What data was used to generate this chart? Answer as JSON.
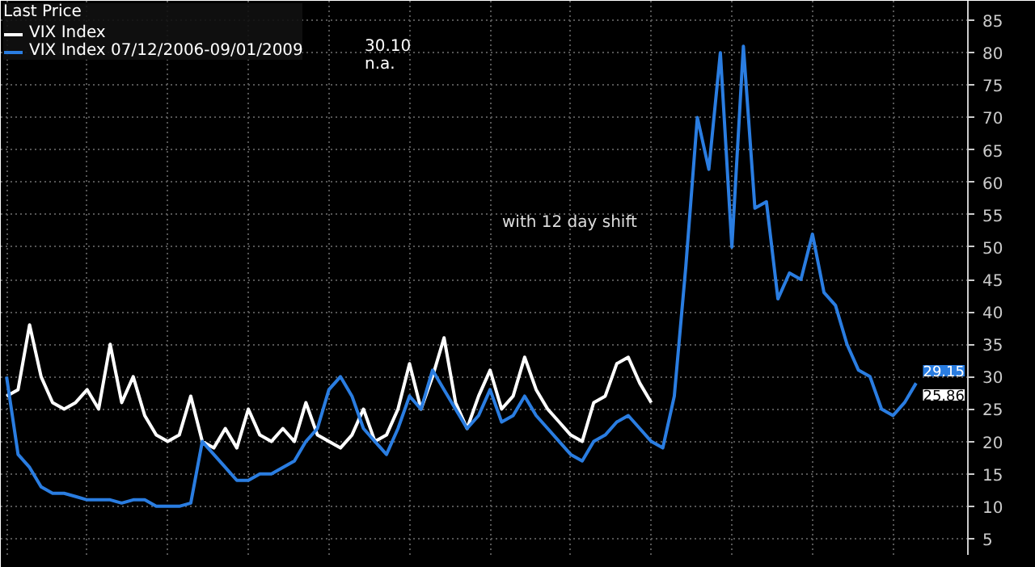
{
  "chart_data": {
    "type": "line",
    "legend_title": "Last Price",
    "categories": [
      null,
      null,
      null,
      null,
      null,
      null,
      null,
      null,
      null,
      null,
      null,
      null,
      null,
      null,
      null,
      null,
      null,
      null,
      null,
      null,
      null,
      null,
      null,
      null,
      null,
      null,
      null,
      null,
      null,
      null,
      null,
      null,
      null,
      null,
      null,
      null,
      null,
      null,
      null,
      null,
      null,
      null,
      null,
      null,
      null,
      null,
      null,
      null,
      null,
      null,
      null,
      null,
      null,
      null,
      null,
      null,
      null,
      null,
      null,
      null,
      null,
      null,
      null,
      null,
      null,
      null,
      null,
      null,
      null,
      null,
      null,
      null,
      null,
      null,
      null,
      null,
      null,
      null,
      null,
      null
    ],
    "series": [
      {
        "name": "VIX Index",
        "color": "#ffffff",
        "values": [
          27,
          28,
          38,
          30,
          26,
          25,
          26,
          28,
          25,
          35,
          26,
          30,
          24,
          21,
          20,
          21,
          27,
          20,
          19,
          22,
          19,
          25,
          21,
          20,
          22,
          20,
          26,
          21,
          20,
          19,
          21,
          25,
          20,
          21,
          25,
          32,
          25,
          30,
          36,
          26,
          22,
          27,
          31,
          25,
          27,
          33,
          28,
          25,
          23,
          21,
          20,
          26,
          27,
          32,
          33,
          29,
          26,
          null,
          null,
          null,
          null,
          null,
          null,
          null,
          null,
          null,
          null,
          null,
          null,
          null,
          null,
          null,
          null,
          null,
          null,
          null,
          null,
          null,
          null,
          null
        ]
      },
      {
        "name": "VIX Index 07/12/2006-09/01/2009",
        "color": "#2a7de1",
        "values": [
          30,
          18,
          16,
          13,
          12,
          12,
          11.5,
          11,
          11,
          11,
          10.5,
          11,
          11,
          10,
          10,
          10,
          10.5,
          20,
          18,
          16,
          14,
          14,
          15,
          15,
          16,
          17,
          20,
          22,
          28,
          30,
          27,
          22,
          20,
          18,
          22,
          27,
          25,
          31,
          28,
          25,
          22,
          24,
          28,
          23,
          24,
          27,
          24,
          22,
          20,
          18,
          17,
          20,
          21,
          23,
          24,
          22,
          20,
          19,
          27,
          47,
          70,
          62,
          80,
          50,
          81,
          56,
          57,
          42,
          46,
          45,
          52,
          43,
          41,
          35,
          31,
          30,
          25,
          24,
          26,
          29
        ]
      }
    ],
    "ylim": [
      2.5,
      88
    ],
    "yticks": [
      5,
      10,
      15,
      20,
      25,
      30,
      35,
      40,
      45,
      50,
      55,
      60,
      65,
      70,
      75,
      80,
      85
    ],
    "grid": true,
    "legend": "top left",
    "tick_labels": "y",
    "annotations": [
      "with 12 day shift",
      "30.10",
      "n.a.",
      "29.15",
      "25.86"
    ]
  }
}
